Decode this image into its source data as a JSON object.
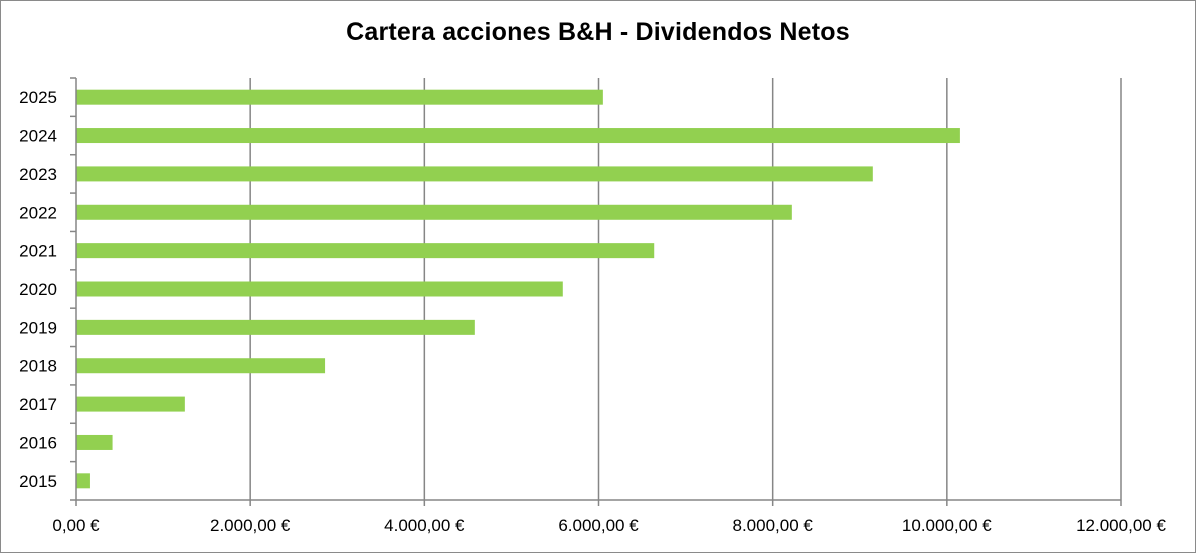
{
  "chart_data": {
    "type": "bar",
    "orientation": "horizontal",
    "title": "Cartera acciones B&H - Dividendos Netos",
    "xlabel": "",
    "ylabel": "",
    "categories": [
      "2015",
      "2016",
      "2017",
      "2018",
      "2019",
      "2020",
      "2021",
      "2022",
      "2023",
      "2024",
      "2025"
    ],
    "values": [
      160,
      420,
      1250,
      2860,
      4580,
      5590,
      6640,
      8220,
      9150,
      10150,
      6050
    ],
    "xlim": [
      0,
      12000
    ],
    "x_ticks": [
      0,
      2000,
      4000,
      6000,
      8000,
      10000,
      12000
    ],
    "x_tick_labels": [
      "0,00 €",
      "2.000,00 €",
      "4.000,00 €",
      "6.000,00 €",
      "8.000,00 €",
      "10.000,00 €",
      "12.000,00 €"
    ],
    "grid": true,
    "legend": "none",
    "bar_color": "#92d050",
    "grid_color": "#868686"
  }
}
